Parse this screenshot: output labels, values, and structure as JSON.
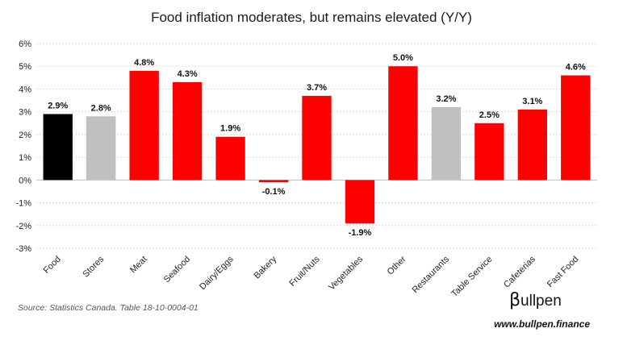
{
  "chart_data": {
    "type": "bar",
    "title": "Food inflation moderates, but remains elevated (Y/Y)",
    "xlabel": "",
    "ylabel": "",
    "ylim": [
      -3,
      6
    ],
    "yticks": [
      "-3%",
      "-2%",
      "-1%",
      "0%",
      "1%",
      "2%",
      "3%",
      "4%",
      "5%",
      "6%"
    ],
    "grid": true,
    "legend": "none",
    "categories": [
      "Food",
      "Stores",
      "Meat",
      "Seafood",
      "Dairy/Eggs",
      "Bakery",
      "Fruit/Nuts",
      "Vegetables",
      "Other",
      "Restaurants",
      "Table Service",
      "Cafeterias",
      "Fast Food"
    ],
    "values": [
      2.9,
      2.8,
      4.8,
      4.3,
      1.9,
      -0.1,
      3.7,
      -1.9,
      5.0,
      3.2,
      2.5,
      3.1,
      4.6
    ],
    "data_labels": [
      "2.9%",
      "2.8%",
      "4.8%",
      "4.3%",
      "1.9%",
      "-0.1%",
      "3.7%",
      "-1.9%",
      "5.0%",
      "3.2%",
      "2.5%",
      "3.1%",
      "4.6%"
    ],
    "bar_colors": [
      "#000000",
      "#c0c0c0",
      "#ff0000",
      "#ff0000",
      "#ff0000",
      "#ff0000",
      "#ff0000",
      "#ff0000",
      "#ff0000",
      "#c0c0c0",
      "#ff0000",
      "#ff0000",
      "#ff0000"
    ]
  },
  "footer": {
    "source": "Source: Statistics Canada. Table 18-10-0004-01",
    "brand_symbol": "β",
    "brand_name": "ullpen",
    "url": "www.bullpen.finance"
  }
}
